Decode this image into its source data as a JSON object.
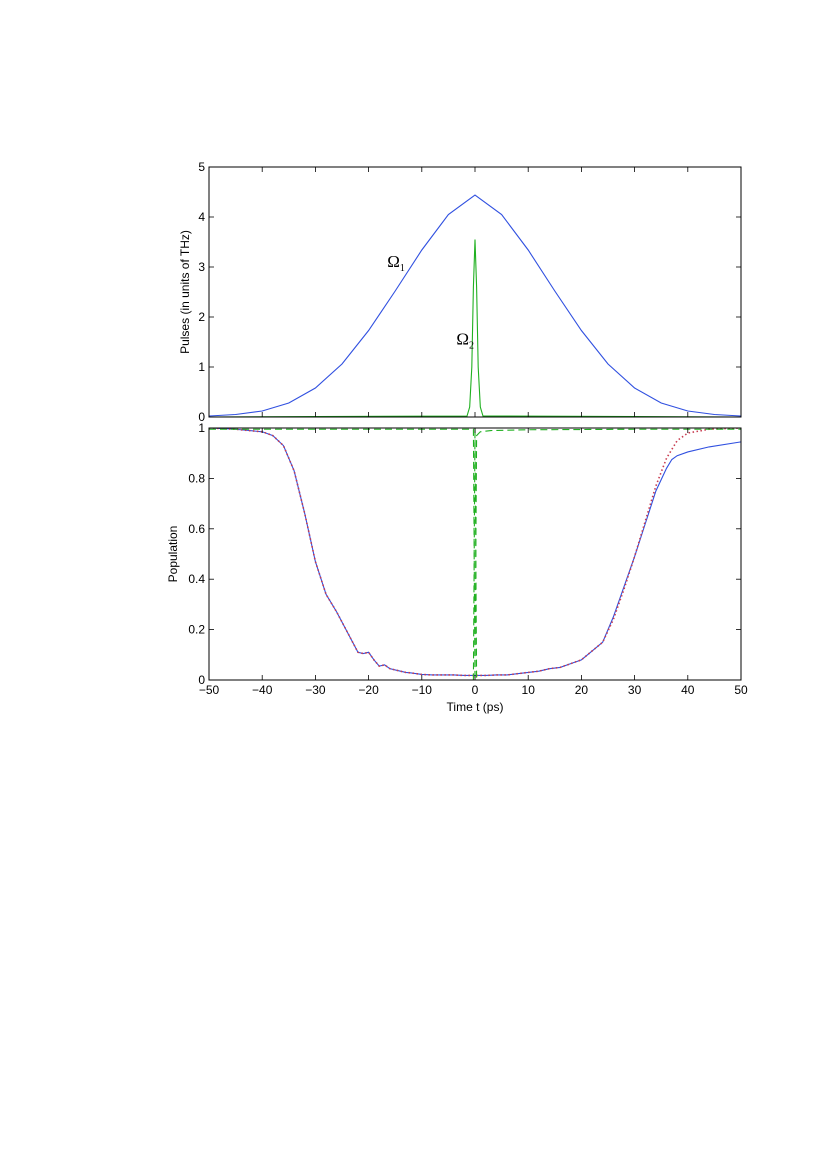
{
  "chart_data": [
    {
      "type": "line",
      "panel": "top",
      "ylabel": "Pulses (in units of THz)",
      "xlabel": "",
      "xlim": [
        -50,
        50
      ],
      "ylim": [
        0,
        5
      ],
      "xticks": [
        -50,
        -40,
        -30,
        -20,
        -10,
        0,
        10,
        20,
        30,
        40,
        50
      ],
      "yticks": [
        0,
        1,
        2,
        3,
        4,
        5
      ],
      "grid": false,
      "annotations": [
        {
          "symbol": "Ω",
          "subscript": "1",
          "x": -16.5,
          "y": 3.0
        },
        {
          "symbol": "Ω",
          "subscript": "2",
          "x": -3.5,
          "y": 1.45
        }
      ],
      "series": [
        {
          "name": "Ω1",
          "color": "#3050e0",
          "style": "solid",
          "x": [
            -50,
            -45,
            -40,
            -35,
            -30,
            -25,
            -20,
            -15,
            -10,
            -5,
            0,
            5,
            10,
            15,
            20,
            25,
            30,
            35,
            40,
            45,
            50
          ],
          "y": [
            0.02,
            0.05,
            0.12,
            0.28,
            0.58,
            1.06,
            1.73,
            2.52,
            3.34,
            4.05,
            4.44,
            4.05,
            3.34,
            2.52,
            1.73,
            1.06,
            0.58,
            0.28,
            0.12,
            0.05,
            0.02
          ]
        },
        {
          "name": "Ω2",
          "color": "#20b020",
          "style": "solid",
          "x": [
            -50,
            -1.5,
            -1.0,
            -0.6,
            -0.3,
            0,
            0.3,
            0.6,
            1.0,
            1.5,
            50
          ],
          "y": [
            0,
            0.02,
            0.2,
            1.0,
            2.6,
            3.55,
            2.6,
            1.0,
            0.2,
            0.02,
            0
          ]
        }
      ]
    },
    {
      "type": "line",
      "panel": "bottom",
      "ylabel": "Population",
      "xlabel": "Time t (ps)",
      "xlim": [
        -50,
        50
      ],
      "ylim": [
        0,
        1
      ],
      "xticks": [
        -50,
        -40,
        -30,
        -20,
        -10,
        0,
        10,
        20,
        30,
        40,
        50
      ],
      "yticks": [
        0,
        0.2,
        0.4,
        0.6,
        0.8,
        1
      ],
      "grid": false,
      "series": [
        {
          "color": "#3050e0",
          "style": "solid",
          "x": [
            -50,
            -45,
            -40,
            -38,
            -36,
            -34,
            -32,
            -30,
            -28,
            -26,
            -24,
            -22,
            -21,
            -20,
            -19,
            -18,
            -17,
            -16,
            -15,
            -14,
            -13,
            -12,
            -11,
            -10,
            -8,
            -6,
            -4,
            -2,
            0,
            2,
            4,
            6,
            8,
            10,
            12,
            14,
            16,
            18,
            20,
            22,
            24,
            26,
            28,
            30,
            32,
            34,
            36,
            37,
            38,
            40,
            44,
            50
          ],
          "y": [
            1.0,
            0.995,
            0.985,
            0.97,
            0.93,
            0.83,
            0.66,
            0.47,
            0.34,
            0.27,
            0.19,
            0.11,
            0.105,
            0.11,
            0.08,
            0.055,
            0.06,
            0.045,
            0.04,
            0.035,
            0.03,
            0.028,
            0.025,
            0.022,
            0.02,
            0.02,
            0.02,
            0.018,
            0.018,
            0.018,
            0.02,
            0.02,
            0.025,
            0.03,
            0.035,
            0.045,
            0.05,
            0.065,
            0.08,
            0.115,
            0.15,
            0.25,
            0.37,
            0.49,
            0.62,
            0.75,
            0.84,
            0.875,
            0.89,
            0.905,
            0.925,
            0.945
          ]
        },
        {
          "color": "#c83c50",
          "style": "dotted",
          "x": [
            -50,
            -45,
            -40,
            -38,
            -36,
            -34,
            -32,
            -30,
            -28,
            -26,
            -24,
            -22,
            -21,
            -20,
            -19,
            -18,
            -17,
            -16,
            -15,
            -14,
            -13,
            -12,
            -11,
            -10,
            -8,
            -6,
            -4,
            -2,
            0,
            2,
            4,
            6,
            8,
            10,
            12,
            14,
            16,
            18,
            20,
            22,
            24,
            26,
            28,
            30,
            32,
            34,
            36,
            38,
            40,
            44,
            50
          ],
          "y": [
            1.0,
            0.995,
            0.985,
            0.97,
            0.93,
            0.83,
            0.66,
            0.47,
            0.34,
            0.27,
            0.19,
            0.11,
            0.105,
            0.11,
            0.08,
            0.055,
            0.06,
            0.045,
            0.04,
            0.035,
            0.03,
            0.028,
            0.025,
            0.022,
            0.02,
            0.02,
            0.02,
            0.018,
            0.018,
            0.018,
            0.02,
            0.02,
            0.025,
            0.03,
            0.035,
            0.045,
            0.05,
            0.065,
            0.08,
            0.115,
            0.15,
            0.24,
            0.36,
            0.49,
            0.63,
            0.77,
            0.88,
            0.95,
            0.98,
            0.995,
            1.0
          ]
        },
        {
          "color": "#20b020",
          "style": "dashed",
          "x": [
            -50,
            -0.3,
            -0.15,
            0,
            0.15,
            0.3,
            50
          ],
          "y": [
            0,
            0,
            0.5,
            1.0,
            0.5,
            0,
            0
          ]
        },
        {
          "color": "#20b020",
          "style": "dashed",
          "x": [
            -50,
            -0.3,
            -0.15,
            0,
            0.15,
            0.3,
            1,
            3,
            10,
            30,
            50
          ],
          "y": [
            0.995,
            0.995,
            0.5,
            0.0,
            0.5,
            0.97,
            0.985,
            0.99,
            0.993,
            0.995,
            0.995
          ]
        }
      ]
    }
  ]
}
